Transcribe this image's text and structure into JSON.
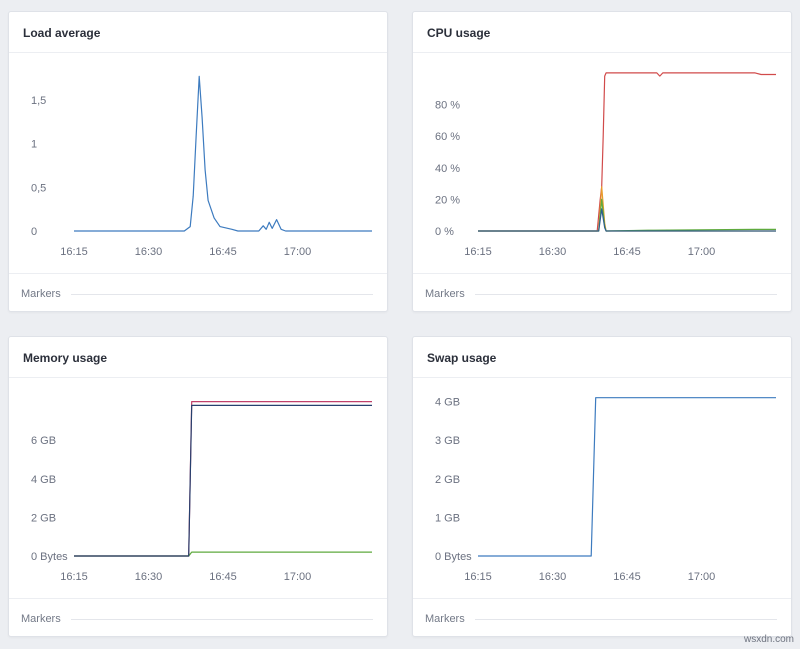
{
  "watermark": "wsxdn.com",
  "panels": [
    {
      "id": "load",
      "title": "Load average",
      "markers_label": "Markers",
      "chart_data": {
        "type": "line",
        "title": "Load average",
        "x_ticks": [
          "16:15",
          "16:30",
          "16:45",
          "17:00"
        ],
        "x_tick_values": [
          16.25,
          16.5,
          16.75,
          17.0
        ],
        "xlim": [
          16.25,
          17.25
        ],
        "ylim": [
          0,
          1.9
        ],
        "y_ticks": [
          {
            "v": 0,
            "label": "0"
          },
          {
            "v": 0.5,
            "label": "0,5"
          },
          {
            "v": 1,
            "label": "1"
          },
          {
            "v": 1.5,
            "label": "1,5"
          }
        ],
        "grid": false,
        "series": [
          {
            "color": "#3d7bbf",
            "points": [
              [
                16.25,
                0
              ],
              [
                16.62,
                0
              ],
              [
                16.64,
                0.05
              ],
              [
                16.65,
                0.4
              ],
              [
                16.66,
                1.1
              ],
              [
                16.67,
                1.77
              ],
              [
                16.68,
                1.3
              ],
              [
                16.69,
                0.7
              ],
              [
                16.7,
                0.35
              ],
              [
                16.72,
                0.15
              ],
              [
                16.74,
                0.05
              ],
              [
                16.78,
                0.02
              ],
              [
                16.8,
                0.0
              ],
              [
                16.87,
                0.0
              ],
              [
                16.885,
                0.06
              ],
              [
                16.895,
                0.02
              ],
              [
                16.905,
                0.1
              ],
              [
                16.915,
                0.03
              ],
              [
                16.93,
                0.13
              ],
              [
                16.945,
                0.02
              ],
              [
                16.96,
                0.0
              ],
              [
                17.25,
                0
              ]
            ]
          }
        ]
      }
    },
    {
      "id": "cpu",
      "title": "CPU usage",
      "markers_label": "Markers",
      "chart_data": {
        "type": "line",
        "title": "CPU usage",
        "x_ticks": [
          "16:15",
          "16:30",
          "16:45",
          "17:00"
        ],
        "x_tick_values": [
          16.25,
          16.5,
          16.75,
          17.0
        ],
        "xlim": [
          16.25,
          17.25
        ],
        "ylim": [
          0,
          105
        ],
        "y_ticks": [
          {
            "v": 0,
            "label": "0 %"
          },
          {
            "v": 20,
            "label": "20 %"
          },
          {
            "v": 40,
            "label": "40 %"
          },
          {
            "v": 60,
            "label": "60 %"
          },
          {
            "v": 80,
            "label": "80 %"
          }
        ],
        "grid": false,
        "series": [
          {
            "color": "#d14a4a",
            "points": [
              [
                16.25,
                0
              ],
              [
                16.65,
                0
              ],
              [
                16.66,
                20
              ],
              [
                16.665,
                28
              ],
              [
                16.67,
                60
              ],
              [
                16.675,
                98
              ],
              [
                16.68,
                100
              ],
              [
                16.85,
                100
              ],
              [
                16.86,
                98
              ],
              [
                16.87,
                100
              ],
              [
                17.18,
                100
              ],
              [
                17.2,
                99
              ],
              [
                17.25,
                99
              ]
            ]
          },
          {
            "color": "#e89b2c",
            "points": [
              [
                16.25,
                0
              ],
              [
                16.655,
                0
              ],
              [
                16.665,
                28
              ],
              [
                16.675,
                5
              ],
              [
                16.68,
                0
              ],
              [
                17.25,
                0
              ]
            ]
          },
          {
            "color": "#5faa3e",
            "points": [
              [
                16.25,
                0
              ],
              [
                16.655,
                0
              ],
              [
                16.665,
                20
              ],
              [
                16.675,
                3
              ],
              [
                16.68,
                0
              ],
              [
                16.82,
                0.5
              ],
              [
                16.84,
                0.5
              ],
              [
                17.18,
                1
              ],
              [
                17.25,
                1
              ]
            ]
          },
          {
            "color": "#2f5f8f",
            "points": [
              [
                16.25,
                0
              ],
              [
                16.655,
                0
              ],
              [
                16.665,
                14
              ],
              [
                16.675,
                2
              ],
              [
                16.68,
                0
              ],
              [
                17.25,
                0
              ]
            ]
          }
        ]
      }
    },
    {
      "id": "memory",
      "title": "Memory usage",
      "markers_label": "Markers",
      "chart_data": {
        "type": "line",
        "title": "Memory usage",
        "x_ticks": [
          "16:15",
          "16:30",
          "16:45",
          "17:00"
        ],
        "x_tick_values": [
          16.25,
          16.5,
          16.75,
          17.0
        ],
        "xlim": [
          16.25,
          17.25
        ],
        "ylim": [
          0,
          8.6
        ],
        "y_ticks": [
          {
            "v": 0,
            "label": "0 Bytes"
          },
          {
            "v": 2,
            "label": "2 GB"
          },
          {
            "v": 4,
            "label": "4 GB"
          },
          {
            "v": 6,
            "label": "6 GB"
          }
        ],
        "grid": false,
        "series": [
          {
            "color": "#c0406a",
            "points": [
              [
                16.25,
                0
              ],
              [
                16.635,
                0
              ],
              [
                16.645,
                8.0
              ],
              [
                17.25,
                8.0
              ]
            ]
          },
          {
            "color": "#5faa3e",
            "points": [
              [
                16.25,
                0
              ],
              [
                16.635,
                0
              ],
              [
                16.645,
                0.2
              ],
              [
                17.25,
                0.2
              ]
            ]
          },
          {
            "color": "#27406e",
            "points": [
              [
                16.25,
                0
              ],
              [
                16.635,
                0
              ],
              [
                16.645,
                7.8
              ],
              [
                17.25,
                7.8
              ]
            ]
          }
        ]
      }
    },
    {
      "id": "swap",
      "title": "Swap usage",
      "markers_label": "Markers",
      "chart_data": {
        "type": "line",
        "title": "Swap usage",
        "x_ticks": [
          "16:15",
          "16:30",
          "16:45",
          "17:00"
        ],
        "x_tick_values": [
          16.25,
          16.5,
          16.75,
          17.0
        ],
        "xlim": [
          16.25,
          17.25
        ],
        "ylim": [
          0,
          4.3
        ],
        "y_ticks": [
          {
            "v": 0,
            "label": "0 Bytes"
          },
          {
            "v": 1,
            "label": "1 GB"
          },
          {
            "v": 2,
            "label": "2 GB"
          },
          {
            "v": 3,
            "label": "3 GB"
          },
          {
            "v": 4,
            "label": "4 GB"
          }
        ],
        "grid": false,
        "series": [
          {
            "color": "#3d7bbf",
            "points": [
              [
                16.25,
                0
              ],
              [
                16.63,
                0
              ],
              [
                16.645,
                4.1
              ],
              [
                17.25,
                4.1
              ]
            ]
          }
        ]
      }
    }
  ]
}
